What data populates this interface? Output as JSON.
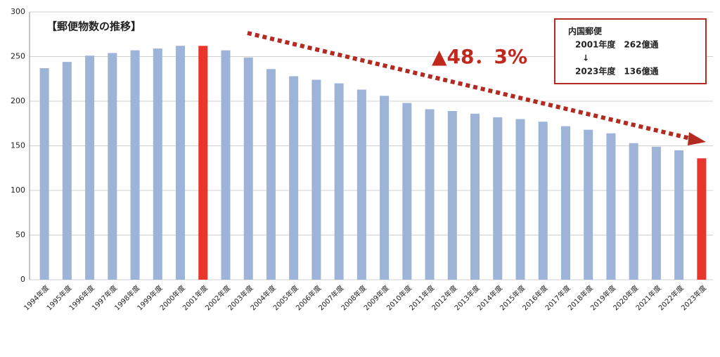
{
  "chart_data": {
    "type": "bar",
    "title": "【郵便物数の推移】",
    "annotations": [
      "▲48．3%",
      "内国郵便",
      "2001年度　262億通",
      "↓",
      "2023年度　136億通"
    ],
    "categories": [
      "1994年度",
      "1995年度",
      "1996年度",
      "1997年度",
      "1998年度",
      "1999年度",
      "2000年度",
      "2001年度",
      "2002年度",
      "2003年度",
      "2004年度",
      "2005年度",
      "2006年度",
      "2007年度",
      "2008年度",
      "2009年度",
      "2010年度",
      "2011年度",
      "2012年度",
      "2013年度",
      "2014年度",
      "2015年度",
      "2016年度",
      "2017年度",
      "2018年度",
      "2019年度",
      "2020年度",
      "2021年度",
      "2022年度",
      "2023年度"
    ],
    "values": [
      237,
      244,
      251,
      254,
      257,
      259,
      262,
      262,
      257,
      249,
      236,
      228,
      224,
      220,
      213,
      206,
      198,
      191,
      189,
      186,
      182,
      180,
      177,
      172,
      168,
      164,
      153,
      149,
      145,
      136
    ],
    "colors": [
      "#9db3d8",
      "#9db3d8",
      "#9db3d8",
      "#9db3d8",
      "#9db3d8",
      "#9db3d8",
      "#9db3d8",
      "#e8362b",
      "#9db3d8",
      "#9db3d8",
      "#9db3d8",
      "#9db3d8",
      "#9db3d8",
      "#9db3d8",
      "#9db3d8",
      "#9db3d8",
      "#9db3d8",
      "#9db3d8",
      "#9db3d8",
      "#9db3d8",
      "#9db3d8",
      "#9db3d8",
      "#9db3d8",
      "#9db3d8",
      "#9db3d8",
      "#9db3d8",
      "#9db3d8",
      "#9db3d8",
      "#9db3d8",
      "#e8362b"
    ],
    "ylim": [
      0,
      300
    ],
    "yticks": [
      0,
      50,
      100,
      150,
      200,
      250,
      300
    ],
    "grid": true
  }
}
